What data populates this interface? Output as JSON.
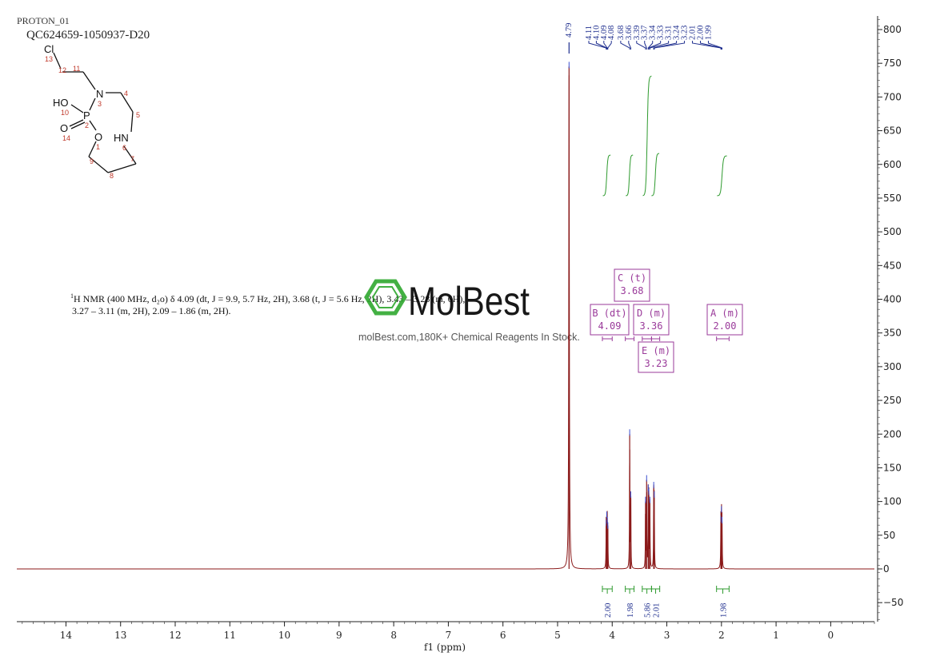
{
  "header": {
    "experiment": "PROTON_01",
    "sample_id": "QC624659-1050937-D20"
  },
  "molecule": {
    "atoms": [
      {
        "symbol": "Cl",
        "num": "13"
      },
      {
        "symbol": "",
        "num": "12"
      },
      {
        "symbol": "",
        "num": "11"
      },
      {
        "symbol": "N",
        "num": "3"
      },
      {
        "symbol": "",
        "num": "4"
      },
      {
        "symbol": "HO",
        "num": "10"
      },
      {
        "symbol": "P",
        "num": "2"
      },
      {
        "symbol": "",
        "num": "5"
      },
      {
        "symbol": "O",
        "num": "14"
      },
      {
        "symbol": "O",
        "num": "1"
      },
      {
        "symbol": "HN",
        "num": "6"
      },
      {
        "symbol": "",
        "num": "9"
      },
      {
        "symbol": "",
        "num": "7"
      },
      {
        "symbol": "",
        "num": "8"
      }
    ]
  },
  "nmr_text": {
    "superscript": "1",
    "line1": "H NMR (400 MHz, d₂o) δ 4.09 (dt, J = 9.9, 5.7 Hz, 2H), 3.68 (t, J = 5.6 Hz, 2H), 3.43 – 3.28 (m, 6H),",
    "line2": "3.27 – 3.11 (m, 2H), 2.09 – 1.86 (m, 2H)."
  },
  "watermark": {
    "brand": "MolBest",
    "tagline": "molBest.com,180K+ Chemical Reagents In Stock."
  },
  "multiplets": [
    {
      "label": "C (t)",
      "shift": "3.68"
    },
    {
      "label": "B (dt)",
      "shift": "4.09"
    },
    {
      "label": "D (m)",
      "shift": "3.36"
    },
    {
      "label": "A (m)",
      "shift": "2.00"
    },
    {
      "label": "E (m)",
      "shift": "3.23"
    }
  ],
  "colors": {
    "spectrum": "#8b1a1a",
    "integral": "#2e9a2e",
    "peak_label": "#1f2f8f",
    "multiplet": "#9a3a9a",
    "axis": "#222222"
  },
  "chart_data": {
    "type": "line",
    "title": "",
    "xlabel": "f1 (ppm)",
    "ylabel": "",
    "x_reversed": true,
    "xlim": [
      14.9,
      -0.8
    ],
    "ylim": [
      -80,
      820
    ],
    "x_ticks": [
      14,
      13,
      12,
      11,
      10,
      9,
      8,
      7,
      6,
      5,
      4,
      3,
      2,
      1,
      0
    ],
    "y_ticks": [
      -50,
      0,
      50,
      100,
      150,
      200,
      250,
      300,
      350,
      400,
      450,
      500,
      550,
      600,
      650,
      700,
      750,
      800
    ],
    "peaks": [
      {
        "ppm": 4.79,
        "height": 745,
        "width": 0.012
      },
      {
        "ppm": 4.11,
        "height": 66,
        "width": 0.007
      },
      {
        "ppm": 4.1,
        "height": 78,
        "width": 0.007
      },
      {
        "ppm": 4.09,
        "height": 70,
        "width": 0.007
      },
      {
        "ppm": 4.08,
        "height": 62,
        "width": 0.007
      },
      {
        "ppm": 3.68,
        "height": 200,
        "width": 0.008
      },
      {
        "ppm": 3.66,
        "height": 108,
        "width": 0.007
      },
      {
        "ppm": 3.39,
        "height": 100,
        "width": 0.007
      },
      {
        "ppm": 3.37,
        "height": 132,
        "width": 0.007
      },
      {
        "ppm": 3.34,
        "height": 118,
        "width": 0.007
      },
      {
        "ppm": 3.33,
        "height": 112,
        "width": 0.007
      },
      {
        "ppm": 3.31,
        "height": 100,
        "width": 0.007
      },
      {
        "ppm": 3.24,
        "height": 122,
        "width": 0.007
      },
      {
        "ppm": 3.23,
        "height": 108,
        "width": 0.007
      },
      {
        "ppm": 2.01,
        "height": 72,
        "width": 0.008
      },
      {
        "ppm": 2.0,
        "height": 86,
        "width": 0.008
      },
      {
        "ppm": 1.99,
        "height": 70,
        "width": 0.008
      }
    ],
    "peak_labels": [
      "4.79",
      "4.11",
      "4.10",
      "4.09",
      "4.08",
      "3.68",
      "3.66",
      "3.39",
      "3.37",
      "3.34",
      "3.33",
      "3.31",
      "3.24",
      "3.23",
      "2.01",
      "2.00",
      "1.99"
    ],
    "integrals": [
      {
        "from": 4.18,
        "to": 4.0,
        "value": "2.00"
      },
      {
        "from": 3.76,
        "to": 3.6,
        "value": "1.98"
      },
      {
        "from": 3.45,
        "to": 3.28,
        "value": "5.86"
      },
      {
        "from": 3.28,
        "to": 3.13,
        "value": "2.01"
      },
      {
        "from": 2.09,
        "to": 1.86,
        "value": "1.98"
      }
    ]
  }
}
